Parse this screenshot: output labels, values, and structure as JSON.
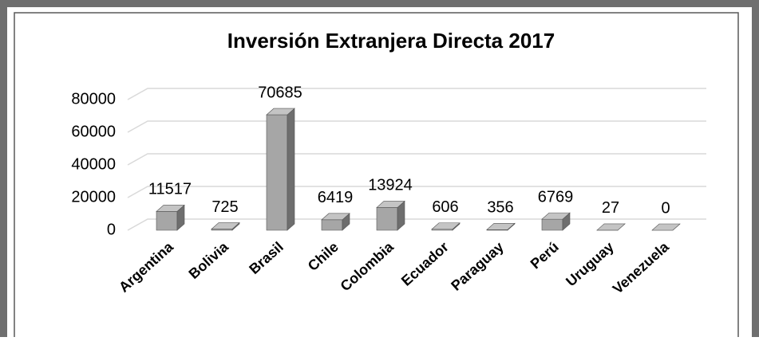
{
  "chart_data": {
    "type": "bar",
    "title": "Inversión Extranjera Directa 2017",
    "categories": [
      "Argentina",
      "Bolivia",
      "Brasil",
      "Chile",
      "Colombia",
      "Ecuador",
      "Paraguay",
      "Perú",
      "Uruguay",
      "Venezuela"
    ],
    "values": [
      11517,
      725,
      70685,
      6419,
      13924,
      606,
      356,
      6769,
      27,
      0
    ],
    "color": "#a6a6a6",
    "ylim": [
      0,
      80000
    ],
    "yticks": [
      0,
      20000,
      40000,
      60000,
      80000
    ],
    "grid": true
  }
}
